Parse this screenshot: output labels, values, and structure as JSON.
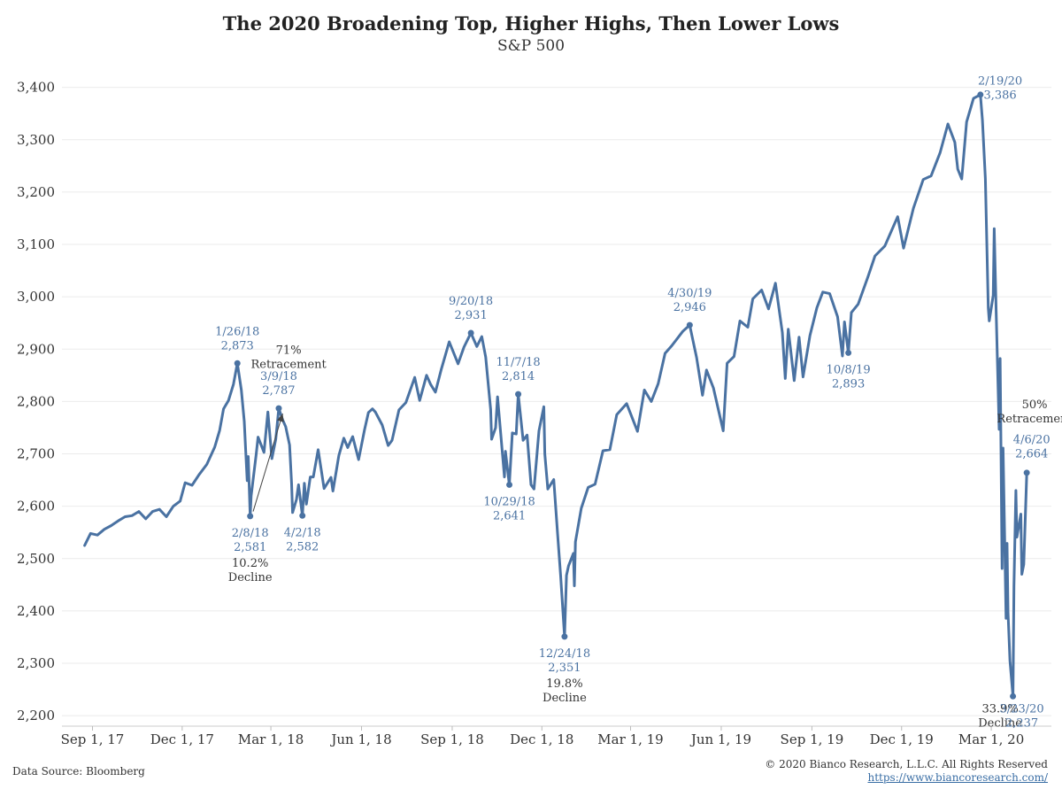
{
  "chart_data": {
    "type": "line",
    "title": "The 2020 Broadening Top, Higher Highs, Then Lower Lows",
    "subtitle": "S&P 500",
    "ylim": [
      2180,
      3440
    ],
    "y_ticks": [
      2200,
      2300,
      2400,
      2500,
      2600,
      2700,
      2800,
      2900,
      3000,
      3100,
      3200,
      3300,
      3400
    ],
    "y_tick_labels": [
      "2,200",
      "2,300",
      "2,400",
      "2,500",
      "2,600",
      "2,700",
      "2,800",
      "2,900",
      "3,000",
      "3,100",
      "3,200",
      "3,300",
      "3,400"
    ],
    "xlim": [
      "2017-08-01",
      "2020-05-01"
    ],
    "x_ticks": [
      "2017-09-01",
      "2017-12-01",
      "2018-03-01",
      "2018-06-01",
      "2018-09-01",
      "2018-12-01",
      "2019-03-01",
      "2019-06-01",
      "2019-09-01",
      "2019-12-01",
      "2020-03-01"
    ],
    "x_tick_labels": [
      "Sep 1, 17",
      "Dec 1, 17",
      "Mar 1, 18",
      "Jun 1, 18",
      "Sep 1, 18",
      "Dec 1, 18",
      "Mar 1, 19",
      "Jun 1, 19",
      "Sep 1, 19",
      "Dec 1, 19",
      "Mar 1, 20"
    ],
    "grid": "horizontal",
    "line_color": "#4a72a2",
    "series": [
      {
        "points": [
          [
            "2017-08-24",
            2525
          ],
          [
            "2017-08-30",
            2548
          ],
          [
            "2017-09-06",
            2545
          ],
          [
            "2017-09-13",
            2556
          ],
          [
            "2017-09-20",
            2563
          ],
          [
            "2017-09-27",
            2572
          ],
          [
            "2017-10-04",
            2580
          ],
          [
            "2017-10-11",
            2582
          ],
          [
            "2017-10-18",
            2590
          ],
          [
            "2017-10-25",
            2576
          ],
          [
            "2017-11-01",
            2590
          ],
          [
            "2017-11-08",
            2594
          ],
          [
            "2017-11-15",
            2580
          ],
          [
            "2017-11-22",
            2600
          ],
          [
            "2017-11-29",
            2610
          ],
          [
            "2017-12-04",
            2645
          ],
          [
            "2017-12-11",
            2640
          ],
          [
            "2017-12-18",
            2660
          ],
          [
            "2017-12-26",
            2680
          ],
          [
            "2018-01-03",
            2713
          ],
          [
            "2018-01-08",
            2745
          ],
          [
            "2018-01-12",
            2786
          ],
          [
            "2018-01-17",
            2802
          ],
          [
            "2018-01-22",
            2833
          ],
          [
            "2018-01-26",
            2873
          ],
          [
            "2018-01-30",
            2822
          ],
          [
            "2018-02-02",
            2762
          ],
          [
            "2018-02-05",
            2649
          ],
          [
            "2018-02-06",
            2695
          ],
          [
            "2018-02-08",
            2581
          ],
          [
            "2018-02-09",
            2620
          ],
          [
            "2018-02-14",
            2698
          ],
          [
            "2018-02-16",
            2732
          ],
          [
            "2018-02-22",
            2703
          ],
          [
            "2018-02-26",
            2780
          ],
          [
            "2018-03-02",
            2691
          ],
          [
            "2018-03-06",
            2728
          ],
          [
            "2018-03-09",
            2787
          ],
          [
            "2018-03-13",
            2765
          ],
          [
            "2018-03-16",
            2752
          ],
          [
            "2018-03-20",
            2717
          ],
          [
            "2018-03-22",
            2643
          ],
          [
            "2018-03-23",
            2588
          ],
          [
            "2018-03-27",
            2613
          ],
          [
            "2018-03-29",
            2641
          ],
          [
            "2018-04-02",
            2582
          ],
          [
            "2018-04-04",
            2644
          ],
          [
            "2018-04-06",
            2604
          ],
          [
            "2018-04-10",
            2656
          ],
          [
            "2018-04-13",
            2656
          ],
          [
            "2018-04-18",
            2708
          ],
          [
            "2018-04-24",
            2634
          ],
          [
            "2018-05-01",
            2655
          ],
          [
            "2018-05-03",
            2629
          ],
          [
            "2018-05-09",
            2697
          ],
          [
            "2018-05-14",
            2730
          ],
          [
            "2018-05-18",
            2712
          ],
          [
            "2018-05-23",
            2733
          ],
          [
            "2018-05-29",
            2689
          ],
          [
            "2018-06-04",
            2746
          ],
          [
            "2018-06-08",
            2779
          ],
          [
            "2018-06-12",
            2786
          ],
          [
            "2018-06-15",
            2780
          ],
          [
            "2018-06-22",
            2755
          ],
          [
            "2018-06-28",
            2716
          ],
          [
            "2018-07-02",
            2726
          ],
          [
            "2018-07-09",
            2784
          ],
          [
            "2018-07-16",
            2798
          ],
          [
            "2018-07-25",
            2846
          ],
          [
            "2018-07-30",
            2802
          ],
          [
            "2018-08-06",
            2850
          ],
          [
            "2018-08-10",
            2833
          ],
          [
            "2018-08-15",
            2818
          ],
          [
            "2018-08-21",
            2862
          ],
          [
            "2018-08-29",
            2914
          ],
          [
            "2018-09-07",
            2872
          ],
          [
            "2018-09-13",
            2904
          ],
          [
            "2018-09-20",
            2931
          ],
          [
            "2018-09-26",
            2905
          ],
          [
            "2018-10-01",
            2924
          ],
          [
            "2018-10-05",
            2885
          ],
          [
            "2018-10-10",
            2785
          ],
          [
            "2018-10-11",
            2728
          ],
          [
            "2018-10-15",
            2750
          ],
          [
            "2018-10-17",
            2809
          ],
          [
            "2018-10-24",
            2656
          ],
          [
            "2018-10-25",
            2705
          ],
          [
            "2018-10-29",
            2641
          ],
          [
            "2018-11-01",
            2740
          ],
          [
            "2018-11-05",
            2738
          ],
          [
            "2018-11-07",
            2814
          ],
          [
            "2018-11-12",
            2726
          ],
          [
            "2018-11-16",
            2736
          ],
          [
            "2018-11-20",
            2641
          ],
          [
            "2018-11-23",
            2633
          ],
          [
            "2018-11-28",
            2744
          ],
          [
            "2018-12-03",
            2790
          ],
          [
            "2018-12-04",
            2700
          ],
          [
            "2018-12-07",
            2633
          ],
          [
            "2018-12-13",
            2651
          ],
          [
            "2018-12-17",
            2546
          ],
          [
            "2018-12-20",
            2467
          ],
          [
            "2018-12-24",
            2351
          ],
          [
            "2018-12-26",
            2468
          ],
          [
            "2018-12-28",
            2486
          ],
          [
            "2019-01-02",
            2510
          ],
          [
            "2019-01-03",
            2448
          ],
          [
            "2019-01-04",
            2532
          ],
          [
            "2019-01-10",
            2596
          ],
          [
            "2019-01-17",
            2636
          ],
          [
            "2019-01-24",
            2642
          ],
          [
            "2019-02-01",
            2706
          ],
          [
            "2019-02-08",
            2708
          ],
          [
            "2019-02-15",
            2775
          ],
          [
            "2019-02-25",
            2796
          ],
          [
            "2019-03-08",
            2743
          ],
          [
            "2019-03-15",
            2822
          ],
          [
            "2019-03-22",
            2800
          ],
          [
            "2019-03-29",
            2834
          ],
          [
            "2019-04-05",
            2892
          ],
          [
            "2019-04-12",
            2907
          ],
          [
            "2019-04-23",
            2934
          ],
          [
            "2019-04-30",
            2946
          ],
          [
            "2019-05-07",
            2884
          ],
          [
            "2019-05-13",
            2812
          ],
          [
            "2019-05-17",
            2860
          ],
          [
            "2019-05-24",
            2826
          ],
          [
            "2019-06-03",
            2744
          ],
          [
            "2019-06-07",
            2873
          ],
          [
            "2019-06-14",
            2886
          ],
          [
            "2019-06-20",
            2954
          ],
          [
            "2019-06-28",
            2942
          ],
          [
            "2019-07-03",
            2996
          ],
          [
            "2019-07-12",
            3013
          ],
          [
            "2019-07-19",
            2977
          ],
          [
            "2019-07-26",
            3026
          ],
          [
            "2019-08-02",
            2932
          ],
          [
            "2019-08-05",
            2844
          ],
          [
            "2019-08-08",
            2938
          ],
          [
            "2019-08-14",
            2840
          ],
          [
            "2019-08-19",
            2923
          ],
          [
            "2019-08-23",
            2847
          ],
          [
            "2019-08-30",
            2926
          ],
          [
            "2019-09-06",
            2979
          ],
          [
            "2019-09-12",
            3009
          ],
          [
            "2019-09-19",
            3006
          ],
          [
            "2019-09-27",
            2962
          ],
          [
            "2019-10-02",
            2887
          ],
          [
            "2019-10-04",
            2952
          ],
          [
            "2019-10-08",
            2893
          ],
          [
            "2019-10-11",
            2970
          ],
          [
            "2019-10-18",
            2986
          ],
          [
            "2019-10-28",
            3039
          ],
          [
            "2019-11-04",
            3078
          ],
          [
            "2019-11-14",
            3097
          ],
          [
            "2019-11-27",
            3153
          ],
          [
            "2019-12-03",
            3093
          ],
          [
            "2019-12-13",
            3169
          ],
          [
            "2019-12-23",
            3224
          ],
          [
            "2019-12-31",
            3231
          ],
          [
            "2020-01-09",
            3275
          ],
          [
            "2020-01-17",
            3330
          ],
          [
            "2020-01-24",
            3295
          ],
          [
            "2020-01-27",
            3244
          ],
          [
            "2020-01-31",
            3225
          ],
          [
            "2020-02-05",
            3334
          ],
          [
            "2020-02-12",
            3379
          ],
          [
            "2020-02-19",
            3386
          ],
          [
            "2020-02-21",
            3337
          ],
          [
            "2020-02-24",
            3226
          ],
          [
            "2020-02-27",
            2979
          ],
          [
            "2020-02-28",
            2954
          ],
          [
            "2020-03-03",
            3003
          ],
          [
            "2020-03-04",
            3130
          ],
          [
            "2020-03-06",
            2972
          ],
          [
            "2020-03-09",
            2747
          ],
          [
            "2020-03-10",
            2882
          ],
          [
            "2020-03-12",
            2481
          ],
          [
            "2020-03-13",
            2711
          ],
          [
            "2020-03-16",
            2386
          ],
          [
            "2020-03-17",
            2529
          ],
          [
            "2020-03-18",
            2398
          ],
          [
            "2020-03-20",
            2305
          ],
          [
            "2020-03-23",
            2237
          ],
          [
            "2020-03-24",
            2447
          ],
          [
            "2020-03-26",
            2630
          ],
          [
            "2020-03-27",
            2541
          ],
          [
            "2020-03-31",
            2585
          ],
          [
            "2020-04-01",
            2470
          ],
          [
            "2020-04-03",
            2489
          ],
          [
            "2020-04-06",
            2664
          ]
        ]
      }
    ],
    "markers": [
      {
        "date": "2018-01-26",
        "value": 2873
      },
      {
        "date": "2018-02-08",
        "value": 2581
      },
      {
        "date": "2018-03-09",
        "value": 2787
      },
      {
        "date": "2018-04-02",
        "value": 2582
      },
      {
        "date": "2018-09-20",
        "value": 2931
      },
      {
        "date": "2018-10-29",
        "value": 2641
      },
      {
        "date": "2018-11-07",
        "value": 2814
      },
      {
        "date": "2018-12-24",
        "value": 2351
      },
      {
        "date": "2019-04-30",
        "value": 2946
      },
      {
        "date": "2019-10-08",
        "value": 2893
      },
      {
        "date": "2020-02-19",
        "value": 3386
      },
      {
        "date": "2020-03-23",
        "value": 2237
      },
      {
        "date": "2020-04-06",
        "value": 2664
      }
    ],
    "annotations": [
      {
        "lines": [
          "1/26/18",
          "2,873"
        ],
        "anchor": [
          "2018-01-26",
          2873
        ],
        "place": "above",
        "color": "#4a72a2"
      },
      {
        "lines": [
          "2/8/18",
          "2,581"
        ],
        "anchor": [
          "2018-02-08",
          2581
        ],
        "place": "below",
        "color": "#4a72a2"
      },
      {
        "lines": [
          "10.2%",
          "Decline"
        ],
        "anchor": [
          "2018-02-08",
          2581
        ],
        "place": "below2",
        "color": "#333333"
      },
      {
        "lines": [
          "71%",
          "Retracement"
        ],
        "anchor": [
          "2018-03-19",
          2888
        ],
        "place": "center",
        "color": "#333333"
      },
      {
        "lines": [
          "3/9/18",
          "2,787"
        ],
        "anchor": [
          "2018-03-09",
          2787
        ],
        "place": "above",
        "color": "#4a72a2"
      },
      {
        "lines": [
          "4/2/18",
          "2,582"
        ],
        "anchor": [
          "2018-04-02",
          2582
        ],
        "place": "below",
        "color": "#4a72a2"
      },
      {
        "lines": [
          "9/20/18",
          "2,931"
        ],
        "anchor": [
          "2018-09-20",
          2931
        ],
        "place": "above",
        "color": "#4a72a2"
      },
      {
        "lines": [
          "11/7/18",
          "2,814"
        ],
        "anchor": [
          "2018-11-07",
          2814
        ],
        "place": "above",
        "color": "#4a72a2"
      },
      {
        "lines": [
          "10/29/18",
          "2,641"
        ],
        "anchor": [
          "2018-10-29",
          2641
        ],
        "place": "below",
        "color": "#4a72a2"
      },
      {
        "lines": [
          "12/24/18",
          "2,351"
        ],
        "anchor": [
          "2018-12-24",
          2351
        ],
        "place": "below",
        "color": "#4a72a2"
      },
      {
        "lines": [
          "19.8%",
          "Decline"
        ],
        "anchor": [
          "2018-12-24",
          2351
        ],
        "place": "below2",
        "color": "#333333"
      },
      {
        "lines": [
          "4/30/19",
          "2,946"
        ],
        "anchor": [
          "2019-04-30",
          2946
        ],
        "place": "above",
        "color": "#4a72a2"
      },
      {
        "lines": [
          "10/8/19",
          "2,893"
        ],
        "anchor": [
          "2019-10-08",
          2893
        ],
        "place": "below",
        "color": "#4a72a2"
      },
      {
        "lines": [
          "2/19/20",
          "3,386"
        ],
        "anchor": [
          "2020-03-10",
          3402
        ],
        "place": "center",
        "color": "#4a72a2"
      },
      {
        "lines": [
          "50%",
          "Retracement"
        ],
        "anchor": [
          "2020-04-14",
          2784
        ],
        "place": "center",
        "color": "#333333"
      },
      {
        "lines": [
          "4/6/20",
          "2,664"
        ],
        "anchor": [
          "2020-04-11",
          2717
        ],
        "place": "center",
        "color": "#4a72a2"
      },
      {
        "lines": [
          "33.9%",
          "Decline"
        ],
        "anchor": [
          "2020-03-10",
          2203
        ],
        "place": "center",
        "color": "#333333"
      },
      {
        "lines": [
          "3/23/20",
          "2,237"
        ],
        "anchor": [
          "2020-04-01",
          2203
        ],
        "place": "center",
        "color": "#4a72a2"
      }
    ],
    "arrow": {
      "from": [
        "2018-02-11",
        2590
      ],
      "to": [
        "2018-03-13",
        2777
      ]
    }
  },
  "footer": {
    "source": "Data Source: Bloomberg",
    "copyright": "© 2020 Bianco Research, L.L.C. All Rights Reserved",
    "website": "https://www.biancoresearch.com/"
  }
}
